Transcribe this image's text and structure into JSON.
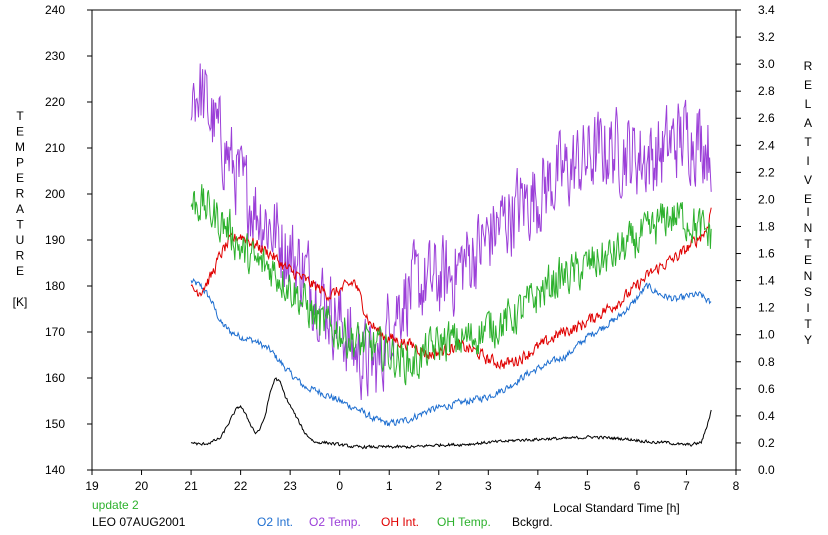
{
  "chart_data": {
    "type": "line",
    "xlabel": "Local Standard Time [h]",
    "ylabel_left": [
      "T",
      "E",
      "M",
      "P",
      "E",
      "R",
      "A",
      "T",
      "U",
      "R",
      "E",
      "",
      "[K]"
    ],
    "ylabel_right_top": [
      "R",
      "E",
      "L",
      "A",
      "T",
      "I",
      "V",
      "E"
    ],
    "ylabel_right_bottom": [
      "I",
      "N",
      "T",
      "E",
      "N",
      "S",
      "I",
      "T",
      "Y"
    ],
    "x_ticks": [
      "19",
      "20",
      "21",
      "22",
      "23",
      "0",
      "1",
      "2",
      "3",
      "4",
      "5",
      "6",
      "7",
      "8"
    ],
    "x_range": [
      19,
      32
    ],
    "y_left_ticks": [
      "140",
      "150",
      "160",
      "170",
      "180",
      "190",
      "200",
      "210",
      "220",
      "230",
      "240"
    ],
    "y_left_range": [
      140,
      240
    ],
    "y_right_ticks": [
      "0.0",
      "0.2",
      "0.4",
      "0.6",
      "0.8",
      "1.0",
      "1.2",
      "1.4",
      "1.6",
      "1.8",
      "2.0",
      "2.2",
      "2.4",
      "2.6",
      "2.8",
      "3.0",
      "3.2",
      "3.4"
    ],
    "y_right_range": [
      0,
      3.4
    ],
    "update_note": "update 2",
    "station_note": "LEO 07AUG2001",
    "grid": false,
    "series": [
      {
        "name": "O2 Int.",
        "color": "#1f6fd0",
        "axis": "left",
        "noise": 0.7,
        "x": [
          21.0,
          21.2,
          21.4,
          21.6,
          21.8,
          22.0,
          22.3,
          22.6,
          23.0,
          23.3,
          23.6,
          24.0,
          24.4,
          24.7,
          25.0,
          25.4,
          25.8,
          26.2,
          26.6,
          27.0,
          27.4,
          27.8,
          28.2,
          28.6,
          29.0,
          29.3,
          29.6,
          29.9,
          30.2,
          30.5,
          30.8,
          31.1,
          31.3,
          31.5
        ],
        "y": [
          181,
          180,
          177,
          172,
          170,
          169,
          168,
          166,
          161,
          158,
          157,
          155,
          153,
          151,
          150,
          151,
          153,
          154,
          155,
          156,
          158,
          161,
          163,
          165,
          169,
          171,
          173,
          176,
          180,
          178,
          177,
          178,
          178,
          176
        ]
      },
      {
        "name": "O2 Temp.",
        "color": "#9b3fd8",
        "axis": "left",
        "noise": 8,
        "x": [
          21.0,
          21.2,
          21.5,
          21.8,
          22.0,
          22.3,
          22.6,
          23.0,
          23.3,
          23.6,
          24.0,
          24.3,
          24.6,
          24.8,
          25.0,
          25.3,
          25.6,
          25.9,
          26.2,
          26.5,
          26.8,
          27.1,
          27.4,
          27.7,
          28.0,
          28.3,
          28.6,
          28.9,
          29.2,
          29.5,
          29.8,
          30.1,
          30.4,
          30.7,
          31.0,
          31.3,
          31.5
        ],
        "y": [
          223,
          222,
          214,
          207,
          202,
          197,
          193,
          187,
          183,
          178,
          172,
          166,
          163,
          163,
          172,
          178,
          180,
          181,
          182,
          185,
          188,
          192,
          195,
          198,
          200,
          203,
          205,
          207,
          209,
          210,
          209,
          208,
          208,
          211,
          213,
          212,
          210
        ]
      },
      {
        "name": "OH Int.",
        "color": "#e00000",
        "axis": "left",
        "noise": 1.2,
        "x": [
          21.0,
          21.2,
          21.4,
          21.6,
          21.8,
          22.0,
          22.3,
          22.6,
          22.9,
          23.2,
          23.5,
          23.8,
          24.0,
          24.3,
          24.6,
          24.9,
          25.2,
          25.5,
          25.8,
          26.1,
          26.4,
          26.7,
          27.0,
          27.3,
          27.6,
          27.9,
          28.2,
          28.5,
          28.8,
          29.1,
          29.4,
          29.7,
          30.0,
          30.3,
          30.6,
          30.9,
          31.2,
          31.4,
          31.5
        ],
        "y": [
          179,
          179,
          182,
          187,
          190,
          191,
          189,
          187,
          184,
          182,
          180,
          178,
          179,
          181,
          172,
          169,
          168,
          167,
          165,
          166,
          167,
          166,
          164,
          163,
          164,
          166,
          168,
          170,
          171,
          173,
          175,
          177,
          180,
          183,
          185,
          187,
          190,
          192,
          197
        ]
      },
      {
        "name": "OH Temp.",
        "color": "#2db12d",
        "axis": "left",
        "noise": 4,
        "x": [
          21.0,
          21.2,
          21.5,
          21.8,
          22.0,
          22.3,
          22.6,
          23.0,
          23.3,
          23.6,
          24.0,
          24.3,
          24.6,
          24.9,
          25.2,
          25.5,
          25.8,
          26.1,
          26.4,
          26.7,
          27.0,
          27.3,
          27.6,
          27.9,
          28.2,
          28.5,
          28.8,
          29.1,
          29.4,
          29.7,
          30.0,
          30.3,
          30.6,
          30.9,
          31.2,
          31.5
        ],
        "y": [
          198,
          198,
          195,
          192,
          188,
          185,
          184,
          180,
          176,
          172,
          170,
          168,
          167,
          166,
          164,
          163,
          166,
          168,
          168,
          169,
          171,
          172,
          174,
          177,
          180,
          182,
          183,
          185,
          186,
          188,
          190,
          192,
          195,
          195,
          193,
          191
        ]
      },
      {
        "name": "Bckgrd.",
        "color": "#000000",
        "axis": "left",
        "noise": 0.3,
        "x": [
          21.0,
          21.2,
          21.4,
          21.6,
          21.7,
          21.8,
          21.9,
          22.0,
          22.1,
          22.2,
          22.3,
          22.4,
          22.5,
          22.6,
          22.7,
          22.8,
          22.9,
          23.0,
          23.1,
          23.2,
          23.3,
          23.4,
          23.5,
          23.7,
          24.0,
          24.3,
          24.6,
          24.9,
          25.2,
          25.5,
          25.8,
          26.1,
          26.4,
          26.7,
          27.0,
          27.3,
          27.6,
          27.9,
          28.2,
          28.5,
          28.8,
          29.1,
          29.4,
          29.7,
          30.0,
          30.3,
          30.6,
          30.9,
          31.1,
          31.3,
          31.4,
          31.5
        ],
        "y": [
          146,
          145.5,
          146,
          147,
          149,
          151,
          153,
          154,
          152,
          150,
          148,
          149,
          152,
          157,
          160,
          159,
          156,
          154,
          152,
          150,
          148,
          147,
          146,
          146,
          145.5,
          145,
          145,
          145,
          145,
          145,
          145.3,
          145.5,
          145.5,
          145.7,
          146,
          146.2,
          146.5,
          146.6,
          146.8,
          146.8,
          147,
          147.2,
          147,
          146.8,
          146.5,
          146,
          146,
          145.5,
          145.5,
          146,
          149,
          153
        ]
      }
    ]
  }
}
